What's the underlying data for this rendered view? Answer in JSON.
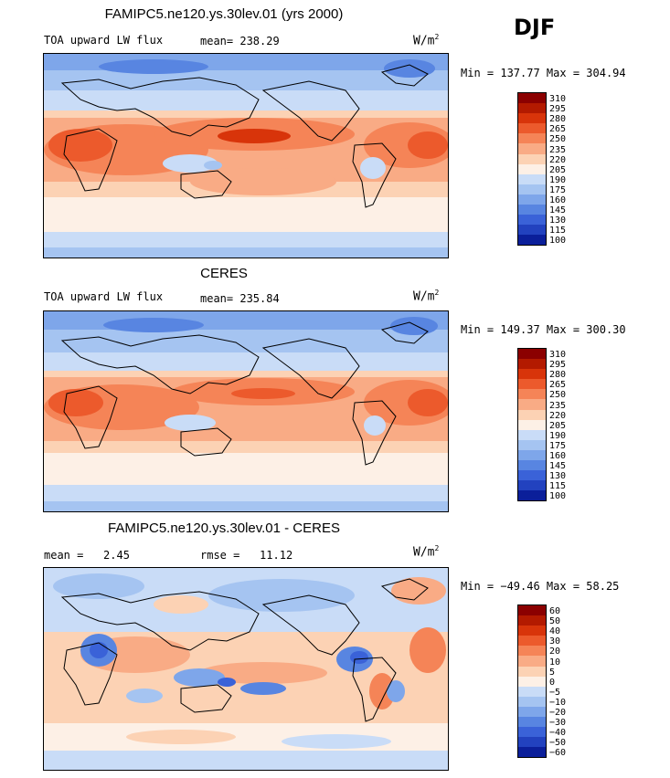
{
  "season": "DJF",
  "panels": [
    {
      "title": "FAMIPC5.ne120.ys.30lev.01 (yrs 2000)",
      "left_label": "TOA upward LW flux",
      "stat_label": "mean=",
      "stat_value": "238.29",
      "units": "W/m",
      "units_sup": "2",
      "range": "Min = 137.77 Max = 304.94",
      "levels": [
        "310",
        "295",
        "280",
        "265",
        "250",
        "235",
        "220",
        "205",
        "190",
        "175",
        "160",
        "145",
        "130",
        "115",
        "100"
      ],
      "colors": [
        "#8b0000",
        "#b31a00",
        "#d8340a",
        "#ec5a2c",
        "#f58457",
        "#f9ab85",
        "#fcd2b4",
        "#fdf0e6",
        "#c9dcf7",
        "#a5c4f1",
        "#7ea6ea",
        "#5885e1",
        "#3a62d8",
        "#2242bf",
        "#0b1f9a"
      ]
    },
    {
      "title": "CERES",
      "left_label": "TOA upward LW flux",
      "stat_label": "mean=",
      "stat_value": "235.84",
      "units": "W/m",
      "units_sup": "2",
      "range": "Min = 149.37 Max = 300.30",
      "levels": [
        "310",
        "295",
        "280",
        "265",
        "250",
        "235",
        "220",
        "205",
        "190",
        "175",
        "160",
        "145",
        "130",
        "115",
        "100"
      ],
      "colors": [
        "#8b0000",
        "#b31a00",
        "#d8340a",
        "#ec5a2c",
        "#f58457",
        "#f9ab85",
        "#fcd2b4",
        "#fdf0e6",
        "#c9dcf7",
        "#a5c4f1",
        "#7ea6ea",
        "#5885e1",
        "#3a62d8",
        "#2242bf",
        "#0b1f9a"
      ]
    },
    {
      "title": "FAMIPC5.ne120.ys.30lev.01 - CERES",
      "left_label": "mean =",
      "left_value": "2.45",
      "stat_label": "rmse =",
      "stat_value": "11.12",
      "units": "W/m",
      "units_sup": "2",
      "range": "Min = −49.46 Max = 58.25",
      "levels": [
        "60",
        "50",
        "40",
        "30",
        "20",
        "10",
        "5",
        "0",
        "−5",
        "−10",
        "−20",
        "−30",
        "−40",
        "−50",
        "−60"
      ],
      "colors": [
        "#8b0000",
        "#b31a00",
        "#d8340a",
        "#ec5a2c",
        "#f58457",
        "#f9ab85",
        "#fcd2b4",
        "#fdf0e6",
        "#c9dcf7",
        "#a5c4f1",
        "#7ea6ea",
        "#5885e1",
        "#3a62d8",
        "#2242bf",
        "#0b1f9a"
      ]
    }
  ]
}
